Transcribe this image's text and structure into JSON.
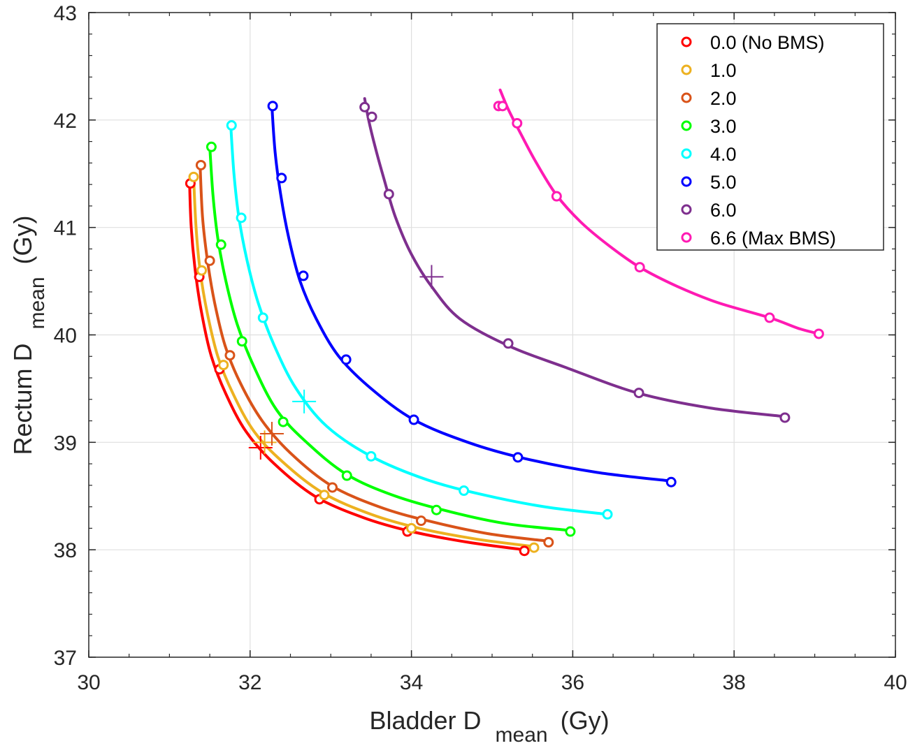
{
  "chart_data": {
    "type": "line",
    "title": "",
    "xlabel": {
      "main": "Bladder D",
      "sub": "mean",
      "unit": "(Gy)"
    },
    "ylabel": {
      "main": "Rectum D",
      "sub": "mean",
      "unit": "(Gy)"
    },
    "xlim": [
      30,
      40
    ],
    "ylim": [
      37,
      43
    ],
    "xticks": [
      "30",
      "32",
      "34",
      "36",
      "38",
      "40"
    ],
    "yticks": [
      "37",
      "38",
      "39",
      "40",
      "41",
      "42",
      "43"
    ],
    "grid": true,
    "legend_position": "top-right",
    "series": [
      {
        "name": "0.0 (No BMS)",
        "color": "#ff0000",
        "points": [
          [
            31.26,
            41.41
          ],
          [
            31.37,
            40.54
          ],
          [
            31.62,
            39.68
          ],
          [
            32.86,
            38.47
          ],
          [
            33.95,
            38.17
          ],
          [
            35.4,
            37.99
          ]
        ],
        "curve": [
          [
            31.25,
            41.4
          ],
          [
            31.27,
            41.0
          ],
          [
            31.32,
            40.6
          ],
          [
            31.4,
            40.2
          ],
          [
            31.52,
            39.8
          ],
          [
            31.7,
            39.45
          ],
          [
            31.95,
            39.1
          ],
          [
            32.3,
            38.8
          ],
          [
            32.8,
            38.5
          ],
          [
            33.4,
            38.3
          ],
          [
            34.0,
            38.17
          ],
          [
            34.7,
            38.07
          ],
          [
            35.4,
            38.0
          ]
        ],
        "marker": [
          32.13,
          38.95
        ]
      },
      {
        "name": "1.0",
        "color": "#edb120",
        "points": [
          [
            31.3,
            41.47
          ],
          [
            31.4,
            40.6
          ],
          [
            31.67,
            39.72
          ],
          [
            32.92,
            38.51
          ],
          [
            34.0,
            38.2
          ],
          [
            35.52,
            38.02
          ]
        ],
        "curve": [
          [
            31.3,
            41.47
          ],
          [
            31.33,
            41.0
          ],
          [
            31.38,
            40.6
          ],
          [
            31.47,
            40.2
          ],
          [
            31.6,
            39.8
          ],
          [
            31.79,
            39.45
          ],
          [
            32.05,
            39.1
          ],
          [
            32.4,
            38.82
          ],
          [
            32.9,
            38.53
          ],
          [
            33.5,
            38.33
          ],
          [
            34.1,
            38.2
          ],
          [
            34.8,
            38.1
          ],
          [
            35.52,
            38.03
          ]
        ],
        "marker": [
          32.18,
          39.0
        ]
      },
      {
        "name": "2.0",
        "color": "#d95319",
        "points": [
          [
            31.39,
            41.58
          ],
          [
            31.5,
            40.69
          ],
          [
            31.75,
            39.81
          ],
          [
            33.02,
            38.58
          ],
          [
            34.12,
            38.27
          ],
          [
            35.7,
            38.07
          ]
        ],
        "curve": [
          [
            31.38,
            41.58
          ],
          [
            31.41,
            41.1
          ],
          [
            31.47,
            40.7
          ],
          [
            31.56,
            40.3
          ],
          [
            31.69,
            39.9
          ],
          [
            31.88,
            39.55
          ],
          [
            32.15,
            39.2
          ],
          [
            32.5,
            38.9
          ],
          [
            33.0,
            38.6
          ],
          [
            33.6,
            38.4
          ],
          [
            34.2,
            38.27
          ],
          [
            34.95,
            38.15
          ],
          [
            35.7,
            38.08
          ]
        ],
        "marker": [
          32.27,
          39.08
        ]
      },
      {
        "name": "3.0",
        "color": "#00ff00",
        "points": [
          [
            31.52,
            41.75
          ],
          [
            31.64,
            40.84
          ],
          [
            31.9,
            39.94
          ],
          [
            32.41,
            39.19
          ],
          [
            33.2,
            38.69
          ],
          [
            34.31,
            38.37
          ],
          [
            35.97,
            38.17
          ]
        ],
        "curve": [
          [
            31.5,
            41.75
          ],
          [
            31.54,
            41.3
          ],
          [
            31.6,
            40.9
          ],
          [
            31.7,
            40.5
          ],
          [
            31.84,
            40.1
          ],
          [
            32.05,
            39.7
          ],
          [
            32.33,
            39.3
          ],
          [
            32.7,
            39.0
          ],
          [
            33.2,
            38.7
          ],
          [
            33.8,
            38.5
          ],
          [
            34.5,
            38.35
          ],
          [
            35.2,
            38.24
          ],
          [
            35.97,
            38.18
          ]
        ],
        "marker": null
      },
      {
        "name": "4.0",
        "color": "#00ffff",
        "points": [
          [
            31.77,
            41.95
          ],
          [
            31.89,
            41.09
          ],
          [
            32.16,
            40.16
          ],
          [
            33.5,
            38.87
          ],
          [
            34.65,
            38.55
          ],
          [
            36.43,
            38.33
          ]
        ],
        "curve": [
          [
            31.76,
            41.95
          ],
          [
            31.8,
            41.5
          ],
          [
            31.86,
            41.1
          ],
          [
            31.96,
            40.7
          ],
          [
            32.1,
            40.3
          ],
          [
            32.3,
            39.9
          ],
          [
            32.57,
            39.5
          ],
          [
            32.95,
            39.15
          ],
          [
            33.5,
            38.87
          ],
          [
            34.2,
            38.65
          ],
          [
            34.9,
            38.51
          ],
          [
            35.65,
            38.4
          ],
          [
            36.43,
            38.33
          ]
        ],
        "marker": [
          32.67,
          39.38
        ]
      },
      {
        "name": "5.0",
        "color": "#0000ff",
        "points": [
          [
            32.28,
            42.13
          ],
          [
            32.39,
            41.46
          ],
          [
            32.66,
            40.55
          ],
          [
            33.19,
            39.77
          ],
          [
            34.03,
            39.21
          ],
          [
            35.32,
            38.86
          ],
          [
            37.22,
            38.63
          ]
        ],
        "curve": [
          [
            32.27,
            42.13
          ],
          [
            32.31,
            41.7
          ],
          [
            32.38,
            41.3
          ],
          [
            32.48,
            40.9
          ],
          [
            32.62,
            40.5
          ],
          [
            32.82,
            40.15
          ],
          [
            33.1,
            39.8
          ],
          [
            33.5,
            39.5
          ],
          [
            34.03,
            39.21
          ],
          [
            34.7,
            39.0
          ],
          [
            35.4,
            38.85
          ],
          [
            36.3,
            38.72
          ],
          [
            37.22,
            38.64
          ]
        ],
        "marker": null
      },
      {
        "name": "6.0",
        "color": "#7e2f8e",
        "points": [
          [
            33.42,
            42.12
          ],
          [
            33.51,
            42.03
          ],
          [
            33.72,
            41.31
          ],
          [
            35.2,
            39.92
          ],
          [
            36.82,
            39.46
          ],
          [
            38.63,
            39.23
          ]
        ],
        "curve": [
          [
            33.42,
            42.2
          ],
          [
            33.47,
            42.0
          ],
          [
            33.55,
            41.75
          ],
          [
            33.66,
            41.45
          ],
          [
            33.8,
            41.1
          ],
          [
            34.0,
            40.75
          ],
          [
            34.25,
            40.45
          ],
          [
            34.6,
            40.15
          ],
          [
            35.2,
            39.9
          ],
          [
            35.9,
            39.7
          ],
          [
            36.8,
            39.46
          ],
          [
            37.7,
            39.32
          ],
          [
            38.63,
            39.24
          ]
        ],
        "marker": [
          34.25,
          40.54
        ]
      },
      {
        "name": "6.6 (Max BMS)",
        "color": "#ff1ab3",
        "points": [
          [
            35.08,
            42.13
          ],
          [
            35.13,
            42.13
          ],
          [
            35.31,
            41.97
          ],
          [
            35.8,
            41.29
          ],
          [
            36.83,
            40.63
          ],
          [
            38.44,
            40.16
          ],
          [
            39.05,
            40.01
          ]
        ],
        "curve": [
          [
            35.1,
            42.28
          ],
          [
            35.2,
            42.1
          ],
          [
            35.35,
            41.88
          ],
          [
            35.55,
            41.6
          ],
          [
            35.8,
            41.3
          ],
          [
            36.1,
            41.05
          ],
          [
            36.45,
            40.83
          ],
          [
            36.83,
            40.63
          ],
          [
            37.3,
            40.45
          ],
          [
            37.8,
            40.3
          ],
          [
            38.44,
            40.16
          ],
          [
            38.8,
            40.06
          ],
          [
            39.05,
            40.01
          ]
        ],
        "marker": null
      }
    ]
  }
}
